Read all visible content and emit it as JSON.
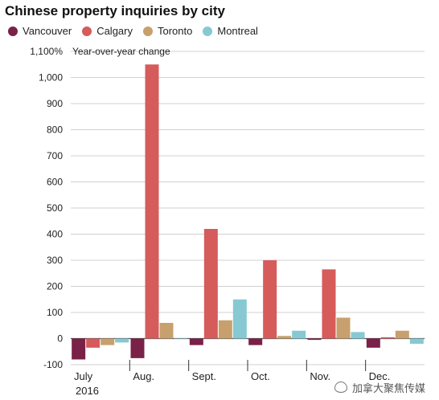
{
  "title": "Chinese property inquiries by city",
  "y_unit_label": "Year-over-year change",
  "watermark": "加拿大聚焦传媒",
  "colors": {
    "Vancouver": "#7a2148",
    "Calgary": "#d65b5b",
    "Toronto": "#c7a06d",
    "Montreal": "#86c9d2"
  },
  "chart_data": {
    "type": "bar",
    "categories": [
      "July",
      "Aug.",
      "Sept.",
      "Oct.",
      "Nov.",
      "Dec."
    ],
    "category_sublabels": [
      "2016",
      "",
      "",
      "",
      "",
      ""
    ],
    "series": [
      {
        "name": "Vancouver",
        "values": [
          -80,
          -75,
          -25,
          -25,
          -5,
          -35
        ]
      },
      {
        "name": "Calgary",
        "values": [
          -35,
          1050,
          420,
          300,
          265,
          5
        ]
      },
      {
        "name": "Toronto",
        "values": [
          -25,
          60,
          70,
          10,
          80,
          30
        ]
      },
      {
        "name": "Montreal",
        "values": [
          -15,
          0,
          150,
          30,
          25,
          -20
        ]
      }
    ],
    "ylim": [
      -100,
      1100
    ],
    "yticks": [
      -100,
      0,
      100,
      200,
      300,
      400,
      500,
      600,
      700,
      800,
      900,
      1000,
      1100
    ],
    "ytick_labels": [
      "-100",
      "0",
      "100",
      "200",
      "300",
      "400",
      "500",
      "600",
      "700",
      "800",
      "900",
      "1,000",
      "1,100%"
    ],
    "grid": true,
    "legend_position": "top-left"
  }
}
